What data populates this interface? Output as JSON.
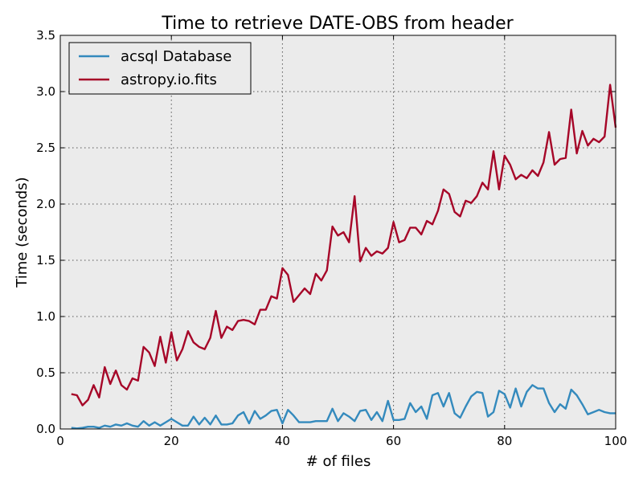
{
  "chart_data": {
    "type": "line",
    "title": "Time to retrieve DATE-OBS from header",
    "xlabel": "# of files",
    "ylabel": "Time (seconds)",
    "xlim": [
      0,
      100
    ],
    "ylim": [
      0,
      3.5
    ],
    "xticks": [
      0,
      20,
      40,
      60,
      80,
      100
    ],
    "yticks": [
      0.0,
      0.5,
      1.0,
      1.5,
      2.0,
      2.5,
      3.0,
      3.5
    ],
    "xtick_labels": [
      "0",
      "20",
      "40",
      "60",
      "80",
      "100"
    ],
    "ytick_labels": [
      "0.0",
      "0.5",
      "1.0",
      "1.5",
      "2.0",
      "2.5",
      "3.0",
      "3.5"
    ],
    "grid": true,
    "legend_position": "top-left",
    "background": "#ebebeb",
    "x": [
      2,
      3,
      4,
      5,
      6,
      7,
      8,
      9,
      10,
      11,
      12,
      13,
      14,
      15,
      16,
      17,
      18,
      19,
      20,
      21,
      22,
      23,
      24,
      25,
      26,
      27,
      28,
      29,
      30,
      31,
      32,
      33,
      34,
      35,
      36,
      37,
      38,
      39,
      40,
      41,
      42,
      43,
      44,
      45,
      46,
      47,
      48,
      49,
      50,
      51,
      52,
      53,
      54,
      55,
      56,
      57,
      58,
      59,
      60,
      61,
      62,
      63,
      64,
      65,
      66,
      67,
      68,
      69,
      70,
      71,
      72,
      73,
      74,
      75,
      76,
      77,
      78,
      79,
      80,
      81,
      82,
      83,
      84,
      85,
      86,
      87,
      88,
      89,
      90,
      91,
      92,
      93,
      94,
      95,
      96,
      97,
      98,
      99,
      100
    ],
    "series": [
      {
        "name": "acsql Database",
        "color": "#348abd",
        "values": [
          0.01,
          0.005,
          0.01,
          0.02,
          0.02,
          0.01,
          0.03,
          0.02,
          0.04,
          0.03,
          0.05,
          0.03,
          0.02,
          0.07,
          0.03,
          0.06,
          0.03,
          0.06,
          0.09,
          0.06,
          0.03,
          0.03,
          0.11,
          0.04,
          0.1,
          0.04,
          0.12,
          0.04,
          0.04,
          0.05,
          0.12,
          0.15,
          0.05,
          0.16,
          0.09,
          0.12,
          0.16,
          0.17,
          0.05,
          0.17,
          0.12,
          0.06,
          0.06,
          0.06,
          0.07,
          0.07,
          0.07,
          0.18,
          0.07,
          0.14,
          0.11,
          0.07,
          0.16,
          0.17,
          0.08,
          0.15,
          0.07,
          0.25,
          0.08,
          0.08,
          0.09,
          0.23,
          0.15,
          0.2,
          0.09,
          0.3,
          0.32,
          0.2,
          0.32,
          0.14,
          0.1,
          0.2,
          0.29,
          0.33,
          0.32,
          0.11,
          0.15,
          0.34,
          0.31,
          0.19,
          0.36,
          0.2,
          0.33,
          0.39,
          0.36,
          0.36,
          0.23,
          0.15,
          0.22,
          0.18,
          0.35,
          0.3,
          0.22,
          0.13,
          0.15,
          0.17,
          0.15,
          0.14,
          0.14
        ]
      },
      {
        "name": "astropy.io.fits",
        "color": "#a60628",
        "values": [
          0.31,
          0.3,
          0.21,
          0.26,
          0.39,
          0.28,
          0.55,
          0.4,
          0.52,
          0.39,
          0.35,
          0.45,
          0.43,
          0.73,
          0.68,
          0.56,
          0.82,
          0.59,
          0.86,
          0.61,
          0.71,
          0.87,
          0.77,
          0.73,
          0.71,
          0.81,
          1.05,
          0.81,
          0.91,
          0.88,
          0.96,
          0.97,
          0.96,
          0.93,
          1.06,
          1.06,
          1.18,
          1.16,
          1.43,
          1.37,
          1.13,
          1.19,
          1.25,
          1.2,
          1.38,
          1.32,
          1.41,
          1.8,
          1.72,
          1.75,
          1.66,
          2.07,
          1.49,
          1.61,
          1.54,
          1.58,
          1.56,
          1.61,
          1.84,
          1.66,
          1.68,
          1.79,
          1.79,
          1.73,
          1.85,
          1.82,
          1.94,
          2.13,
          2.09,
          1.93,
          1.89,
          2.03,
          2.01,
          2.07,
          2.19,
          2.13,
          2.47,
          2.13,
          2.43,
          2.35,
          2.22,
          2.26,
          2.23,
          2.3,
          2.25,
          2.37,
          2.64,
          2.35,
          2.4,
          2.41,
          2.84,
          2.45,
          2.65,
          2.52,
          2.58,
          2.55,
          2.6,
          3.06,
          2.68
        ]
      }
    ]
  }
}
